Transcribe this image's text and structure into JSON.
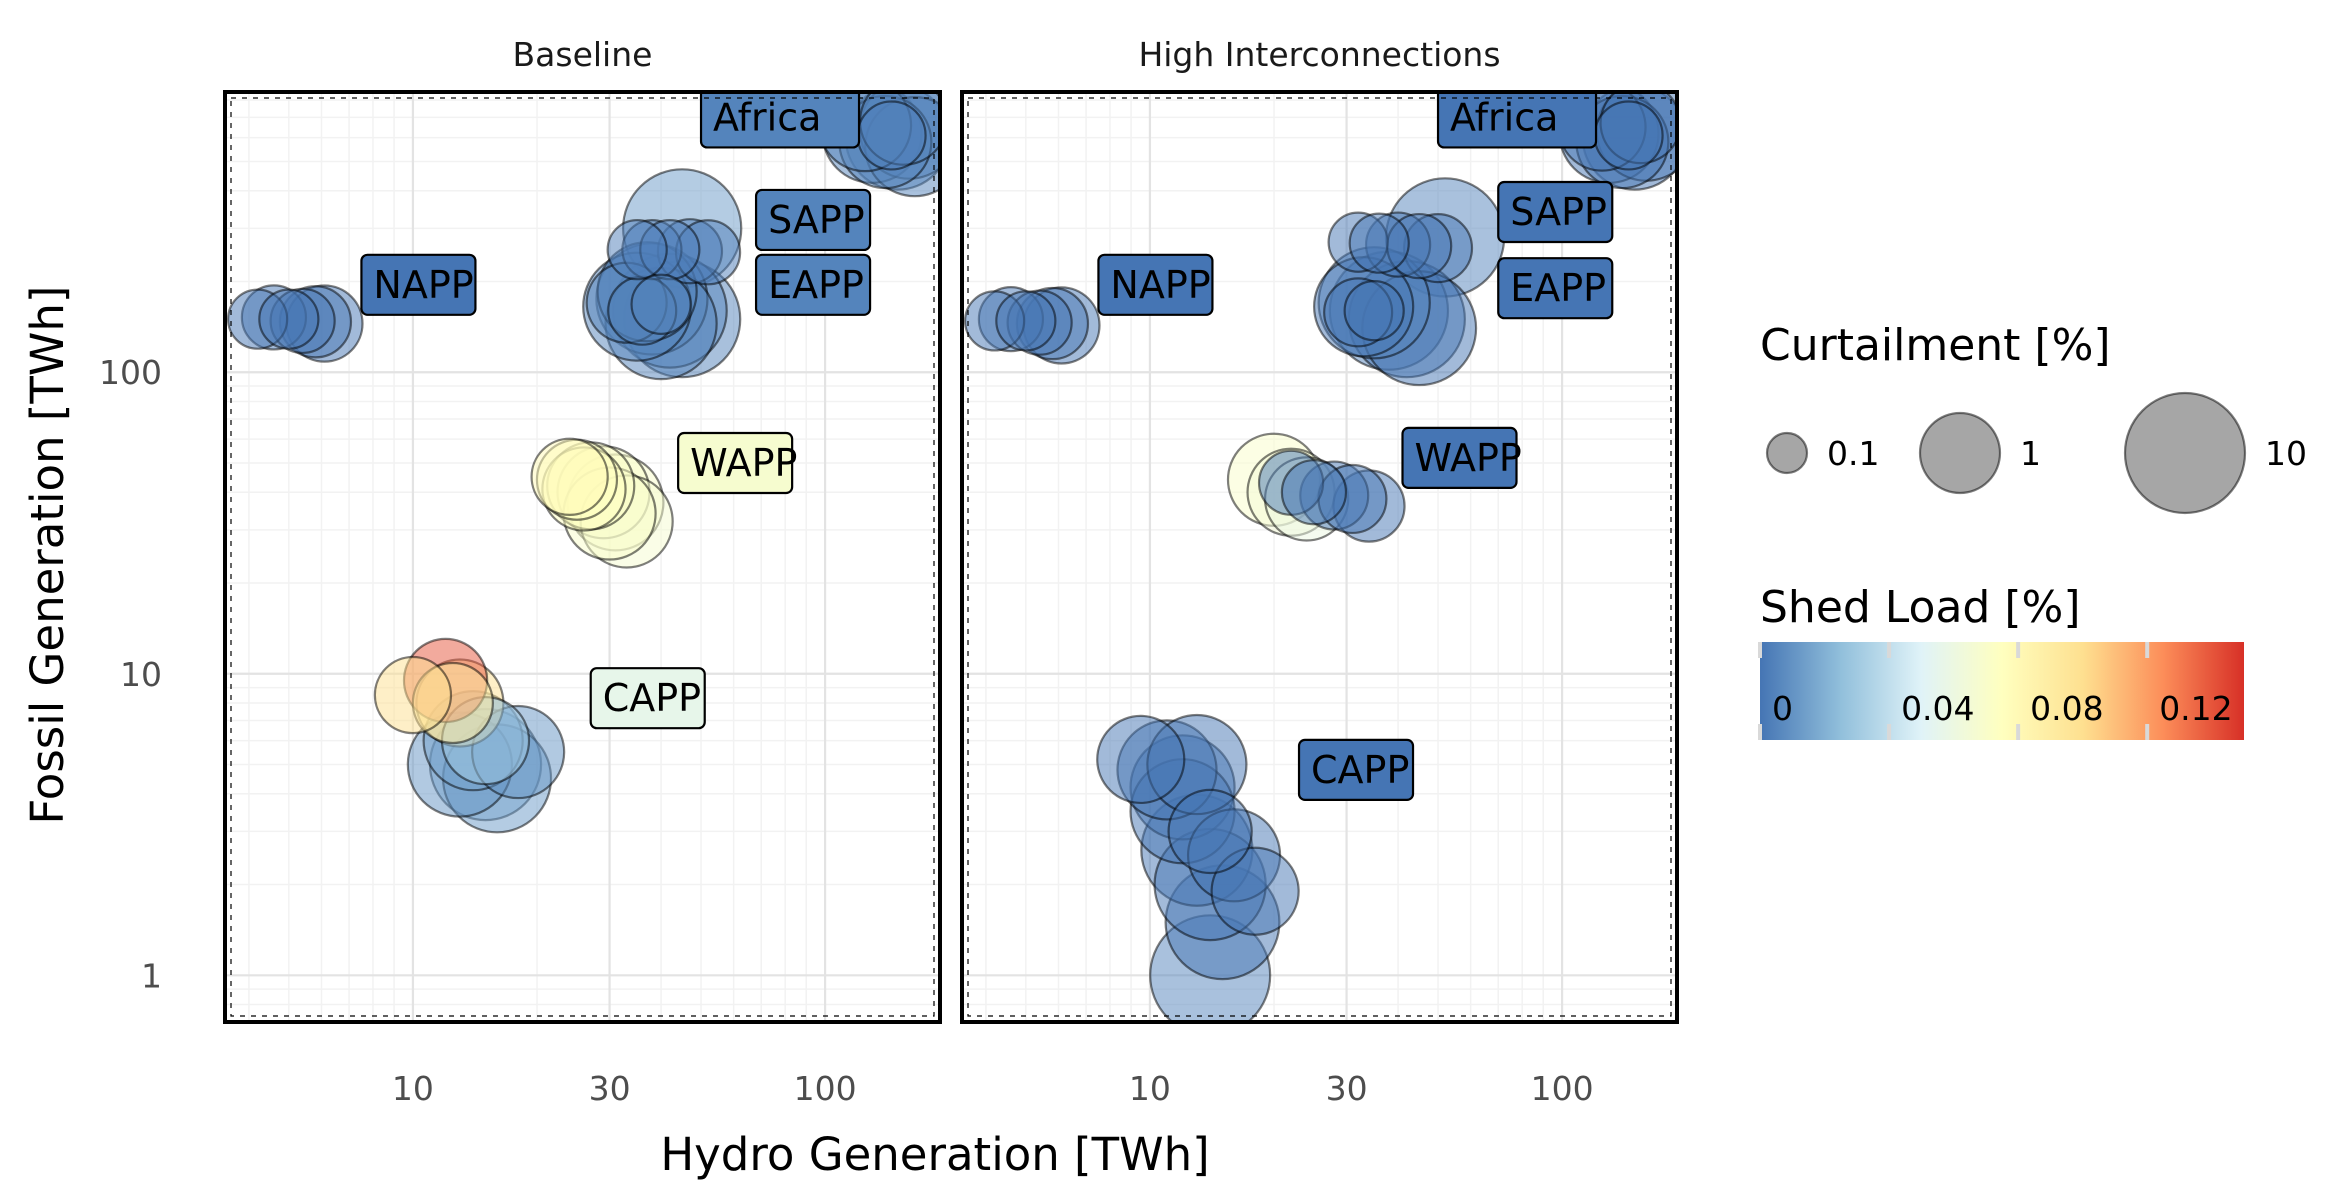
{
  "chart_data": {
    "type": "scatter",
    "facets": [
      "Baseline",
      "High Interconnections"
    ],
    "xlabel": "Hydro Generation [TWh]",
    "ylabel": "Fossil Generation [TWh]",
    "x_scale": "log10",
    "y_scale": "log10",
    "xlim": [
      3.5,
      190
    ],
    "ylim": [
      0.7,
      850
    ],
    "x_ticks": [
      10,
      30,
      100
    ],
    "x_tick_labels": [
      "10",
      "30",
      "100"
    ],
    "y_ticks": [
      1,
      10,
      100
    ],
    "y_tick_labels": [
      "1",
      "10",
      "100"
    ],
    "size_legend": {
      "title": "Curtailment [%]",
      "values": [
        0.1,
        1,
        10
      ],
      "labels": [
        "0.1",
        "1",
        "10"
      ]
    },
    "color_legend": {
      "title": "Shed Load [%]",
      "min": 0,
      "max": 0.15,
      "ticks": [
        0,
        0.04,
        0.08,
        0.12
      ],
      "labels": [
        "0",
        "0.04",
        "0.08",
        "0.12"
      ],
      "colors": [
        "#4575b4",
        "#91bfdb",
        "#e0f3f8",
        "#ffffbf",
        "#fee090",
        "#fc8d59",
        "#d73027"
      ]
    },
    "panels": [
      {
        "name": "Baseline",
        "labels": [
          {
            "text": "Africa",
            "x": 50,
            "y": 700,
            "shed": 0.005
          },
          {
            "text": "SAPP",
            "x": 68,
            "y": 320,
            "shed": 0.005
          },
          {
            "text": "EAPP",
            "x": 68,
            "y": 195,
            "shed": 0.005
          },
          {
            "text": "NAPP",
            "x": 7.5,
            "y": 195,
            "shed": 0.0
          },
          {
            "text": "WAPP",
            "x": 44,
            "y": 50,
            "shed": 0.068
          },
          {
            "text": "CAPP",
            "x": 27,
            "y": 8.3,
            "shed": 0.056
          }
        ],
        "points": [
          {
            "region": "Africa",
            "hydro": 130,
            "fossil": 620,
            "curtail": 3,
            "shed": 0.005
          },
          {
            "region": "Africa",
            "hydro": 150,
            "fossil": 600,
            "curtail": 4,
            "shed": 0.004
          },
          {
            "region": "Africa",
            "hydro": 160,
            "fossil": 640,
            "curtail": 3,
            "shed": 0.005
          },
          {
            "region": "Africa",
            "hydro": 140,
            "fossil": 580,
            "curtail": 2,
            "shed": 0.004
          },
          {
            "region": "Africa",
            "hydro": 165,
            "fossil": 560,
            "curtail": 3,
            "shed": 0.005
          },
          {
            "region": "Africa",
            "hydro": 125,
            "fossil": 660,
            "curtail": 2,
            "shed": 0.004
          },
          {
            "region": "Africa",
            "hydro": 155,
            "fossil": 680,
            "curtail": 1.5,
            "shed": 0.005
          },
          {
            "region": "Africa",
            "hydro": 145,
            "fossil": 610,
            "curtail": 0.5,
            "shed": 0.003
          },
          {
            "region": "SAPP",
            "hydro": 45,
            "fossil": 300,
            "curtail": 9,
            "shed": 0.012
          },
          {
            "region": "SAPP",
            "hydro": 38,
            "fossil": 255,
            "curtail": 0.3,
            "shed": 0.003
          },
          {
            "region": "SAPP",
            "hydro": 42,
            "fossil": 255,
            "curtail": 0.3,
            "shed": 0.003
          },
          {
            "region": "SAPP",
            "hydro": 47,
            "fossil": 252,
            "curtail": 0.4,
            "shed": 0.003
          },
          {
            "region": "SAPP",
            "hydro": 52,
            "fossil": 250,
            "curtail": 0.4,
            "shed": 0.003
          },
          {
            "region": "SAPP",
            "hydro": 35,
            "fossil": 255,
            "curtail": 0.3,
            "shed": 0.003
          },
          {
            "region": "EAPP",
            "hydro": 38,
            "fossil": 175,
            "curtail": 6,
            "shed": 0.004
          },
          {
            "region": "EAPP",
            "hydro": 42,
            "fossil": 160,
            "curtail": 7,
            "shed": 0.005
          },
          {
            "region": "EAPP",
            "hydro": 45,
            "fossil": 150,
            "curtail": 8,
            "shed": 0.004
          },
          {
            "region": "EAPP",
            "hydro": 35,
            "fossil": 165,
            "curtail": 5,
            "shed": 0.005
          },
          {
            "region": "EAPP",
            "hydro": 40,
            "fossil": 145,
            "curtail": 6,
            "shed": 0.004
          },
          {
            "region": "EAPP",
            "hydro": 37,
            "fossil": 185,
            "curtail": 3,
            "shed": 0.005
          },
          {
            "region": "EAPP",
            "hydro": 33,
            "fossil": 170,
            "curtail": 1,
            "shed": 0.004
          },
          {
            "region": "EAPP",
            "hydro": 36,
            "fossil": 160,
            "curtail": 0.5,
            "shed": 0.004
          },
          {
            "region": "EAPP",
            "hydro": 40,
            "fossil": 168,
            "curtail": 0.3,
            "shed": 0.004
          },
          {
            "region": "NAPP",
            "hydro": 4.2,
            "fossil": 150,
            "curtail": 0.3,
            "shed": 0.0
          },
          {
            "region": "NAPP",
            "hydro": 4.6,
            "fossil": 152,
            "curtail": 0.4,
            "shed": 0.0
          },
          {
            "region": "NAPP",
            "hydro": 5.0,
            "fossil": 150,
            "curtail": 0.3,
            "shed": 0.0
          },
          {
            "region": "NAPP",
            "hydro": 5.4,
            "fossil": 148,
            "curtail": 0.4,
            "shed": 0.0
          },
          {
            "region": "NAPP",
            "hydro": 5.8,
            "fossil": 147,
            "curtail": 0.6,
            "shed": 0.0
          },
          {
            "region": "NAPP",
            "hydro": 6.1,
            "fossil": 145,
            "curtail": 0.8,
            "shed": 0.0
          },
          {
            "region": "WAPP",
            "hydro": 25,
            "fossil": 44,
            "curtail": 1,
            "shed": 0.075
          },
          {
            "region": "WAPP",
            "hydro": 27,
            "fossil": 42,
            "curtail": 1.5,
            "shed": 0.072
          },
          {
            "region": "WAPP",
            "hydro": 29,
            "fossil": 40,
            "curtail": 2,
            "shed": 0.07
          },
          {
            "region": "WAPP",
            "hydro": 31,
            "fossil": 37,
            "curtail": 2.5,
            "shed": 0.07
          },
          {
            "region": "WAPP",
            "hydro": 33,
            "fossil": 32,
            "curtail": 2,
            "shed": 0.068
          },
          {
            "region": "WAPP",
            "hydro": 30,
            "fossil": 34,
            "curtail": 2,
            "shed": 0.07
          },
          {
            "region": "WAPP",
            "hydro": 24,
            "fossil": 45,
            "curtail": 0.8,
            "shed": 0.08
          },
          {
            "region": "WAPP",
            "hydro": 26,
            "fossil": 41,
            "curtail": 1.2,
            "shed": 0.075
          },
          {
            "region": "CAPP",
            "hydro": 10,
            "fossil": 8.5,
            "curtail": 0.8,
            "shed": 0.1
          },
          {
            "region": "CAPP",
            "hydro": 12,
            "fossil": 9.5,
            "curtail": 1.2,
            "shed": 0.14
          },
          {
            "region": "CAPP",
            "hydro": 13,
            "fossil": 8,
            "curtail": 1.5,
            "shed": 0.1
          },
          {
            "region": "CAPP",
            "hydro": 12.5,
            "fossil": 8,
            "curtail": 1,
            "shed": 0.09
          },
          {
            "region": "CAPP",
            "hydro": 14,
            "fossil": 6,
            "curtail": 3,
            "shed": 0.015
          },
          {
            "region": "CAPP",
            "hydro": 15,
            "fossil": 5,
            "curtail": 6,
            "shed": 0.02
          },
          {
            "region": "CAPP",
            "hydro": 13,
            "fossil": 5,
            "curtail": 4,
            "shed": 0.01
          },
          {
            "region": "CAPP",
            "hydro": 16,
            "fossil": 4.5,
            "curtail": 5,
            "shed": 0.012
          },
          {
            "region": "CAPP",
            "hydro": 18,
            "fossil": 5.5,
            "curtail": 2,
            "shed": 0.01
          },
          {
            "region": "CAPP",
            "hydro": 15,
            "fossil": 6,
            "curtail": 1.5,
            "shed": 0.03
          }
        ]
      },
      {
        "name": "High Interconnections",
        "labels": [
          {
            "text": "Africa",
            "x": 50,
            "y": 700,
            "shed": 0.0
          },
          {
            "text": "SAPP",
            "x": 70,
            "y": 340,
            "shed": 0.0
          },
          {
            "text": "EAPP",
            "x": 70,
            "y": 190,
            "shed": 0.0
          },
          {
            "text": "NAPP",
            "x": 7.5,
            "y": 195,
            "shed": 0.0
          },
          {
            "text": "WAPP",
            "x": 41,
            "y": 52,
            "shed": 0.0
          },
          {
            "text": "CAPP",
            "x": 23,
            "y": 4.8,
            "shed": 0.0
          }
        ],
        "points": [
          {
            "region": "Africa",
            "hydro": 130,
            "fossil": 620,
            "curtail": 3,
            "shed": 0.0
          },
          {
            "region": "Africa",
            "hydro": 150,
            "fossil": 600,
            "curtail": 4,
            "shed": 0.0
          },
          {
            "region": "Africa",
            "hydro": 160,
            "fossil": 630,
            "curtail": 3,
            "shed": 0.0
          },
          {
            "region": "Africa",
            "hydro": 140,
            "fossil": 580,
            "curtail": 2,
            "shed": 0.0
          },
          {
            "region": "Africa",
            "hydro": 125,
            "fossil": 650,
            "curtail": 1.5,
            "shed": 0.0
          },
          {
            "region": "Africa",
            "hydro": 155,
            "fossil": 670,
            "curtail": 1,
            "shed": 0.0
          },
          {
            "region": "Africa",
            "hydro": 145,
            "fossil": 610,
            "curtail": 0.5,
            "shed": 0.0
          },
          {
            "region": "SAPP",
            "hydro": 52,
            "fossil": 280,
            "curtail": 9,
            "shed": 0.005
          },
          {
            "region": "SAPP",
            "hydro": 32,
            "fossil": 270,
            "curtail": 0.3,
            "shed": 0.0
          },
          {
            "region": "SAPP",
            "hydro": 36,
            "fossil": 268,
            "curtail": 0.3,
            "shed": 0.0
          },
          {
            "region": "SAPP",
            "hydro": 40,
            "fossil": 265,
            "curtail": 0.4,
            "shed": 0.0
          },
          {
            "region": "SAPP",
            "hydro": 45,
            "fossil": 262,
            "curtail": 0.4,
            "shed": 0.0
          },
          {
            "region": "SAPP",
            "hydro": 50,
            "fossil": 258,
            "curtail": 0.5,
            "shed": 0.0
          },
          {
            "region": "EAPP",
            "hydro": 38,
            "fossil": 160,
            "curtail": 9,
            "shed": 0.005
          },
          {
            "region": "EAPP",
            "hydro": 42,
            "fossil": 150,
            "curtail": 8,
            "shed": 0.0
          },
          {
            "region": "EAPP",
            "hydro": 35,
            "fossil": 170,
            "curtail": 6,
            "shed": 0.005
          },
          {
            "region": "EAPP",
            "hydro": 45,
            "fossil": 140,
            "curtail": 7,
            "shed": 0.0
          },
          {
            "region": "EAPP",
            "hydro": 33,
            "fossil": 165,
            "curtail": 3,
            "shed": 0.0
          },
          {
            "region": "EAPP",
            "hydro": 32,
            "fossil": 158,
            "curtail": 0.5,
            "shed": 0.0
          },
          {
            "region": "EAPP",
            "hydro": 35,
            "fossil": 160,
            "curtail": 0.3,
            "shed": 0.0
          },
          {
            "region": "NAPP",
            "hydro": 4.2,
            "fossil": 148,
            "curtail": 0.3,
            "shed": 0.0
          },
          {
            "region": "NAPP",
            "hydro": 4.6,
            "fossil": 150,
            "curtail": 0.4,
            "shed": 0.0
          },
          {
            "region": "NAPP",
            "hydro": 5.0,
            "fossil": 148,
            "curtail": 0.3,
            "shed": 0.0
          },
          {
            "region": "NAPP",
            "hydro": 5.4,
            "fossil": 146,
            "curtail": 0.4,
            "shed": 0.0
          },
          {
            "region": "NAPP",
            "hydro": 5.8,
            "fossil": 145,
            "curtail": 0.6,
            "shed": 0.0
          },
          {
            "region": "NAPP",
            "hydro": 6.1,
            "fossil": 143,
            "curtail": 0.8,
            "shed": 0.0
          },
          {
            "region": "WAPP",
            "hydro": 20,
            "fossil": 44,
            "curtail": 2,
            "shed": 0.07
          },
          {
            "region": "WAPP",
            "hydro": 22,
            "fossil": 40,
            "curtail": 1.5,
            "shed": 0.065
          },
          {
            "region": "WAPP",
            "hydro": 24,
            "fossil": 38,
            "curtail": 1.2,
            "shed": 0.06
          },
          {
            "region": "WAPP",
            "hydro": 22,
            "fossil": 43,
            "curtail": 0.4,
            "shed": 0.0
          },
          {
            "region": "WAPP",
            "hydro": 25,
            "fossil": 40,
            "curtail": 0.4,
            "shed": 0.0
          },
          {
            "region": "WAPP",
            "hydro": 28,
            "fossil": 39,
            "curtail": 0.5,
            "shed": 0.0
          },
          {
            "region": "WAPP",
            "hydro": 31,
            "fossil": 38,
            "curtail": 0.5,
            "shed": 0.0
          },
          {
            "region": "WAPP",
            "hydro": 34,
            "fossil": 36,
            "curtail": 0.6,
            "shed": 0.0
          },
          {
            "region": "CAPP",
            "hydro": 9.5,
            "fossil": 5.2,
            "curtail": 1.5,
            "shed": 0.0
          },
          {
            "region": "CAPP",
            "hydro": 11,
            "fossil": 4.8,
            "curtail": 3,
            "shed": 0.0
          },
          {
            "region": "CAPP",
            "hydro": 12,
            "fossil": 4.2,
            "curtail": 4,
            "shed": 0.0
          },
          {
            "region": "CAPP",
            "hydro": 13,
            "fossil": 5,
            "curtail": 3,
            "shed": 0.0
          },
          {
            "region": "CAPP",
            "hydro": 12,
            "fossil": 3.5,
            "curtail": 4,
            "shed": 0.0
          },
          {
            "region": "CAPP",
            "hydro": 13,
            "fossil": 2.6,
            "curtail": 6,
            "shed": 0.0
          },
          {
            "region": "CAPP",
            "hydro": 14,
            "fossil": 2.0,
            "curtail": 6,
            "shed": 0.0
          },
          {
            "region": "CAPP",
            "hydro": 15,
            "fossil": 1.5,
            "curtail": 7,
            "shed": 0.0
          },
          {
            "region": "CAPP",
            "hydro": 14,
            "fossil": 1.0,
            "curtail": 10,
            "shed": 0.005
          },
          {
            "region": "CAPP",
            "hydro": 16,
            "fossil": 2.5,
            "curtail": 2,
            "shed": 0.0
          },
          {
            "region": "CAPP",
            "hydro": 18,
            "fossil": 1.9,
            "curtail": 1.5,
            "shed": 0.0
          },
          {
            "region": "CAPP",
            "hydro": 14,
            "fossil": 3.0,
            "curtail": 1.2,
            "shed": 0.0
          }
        ]
      }
    ]
  }
}
